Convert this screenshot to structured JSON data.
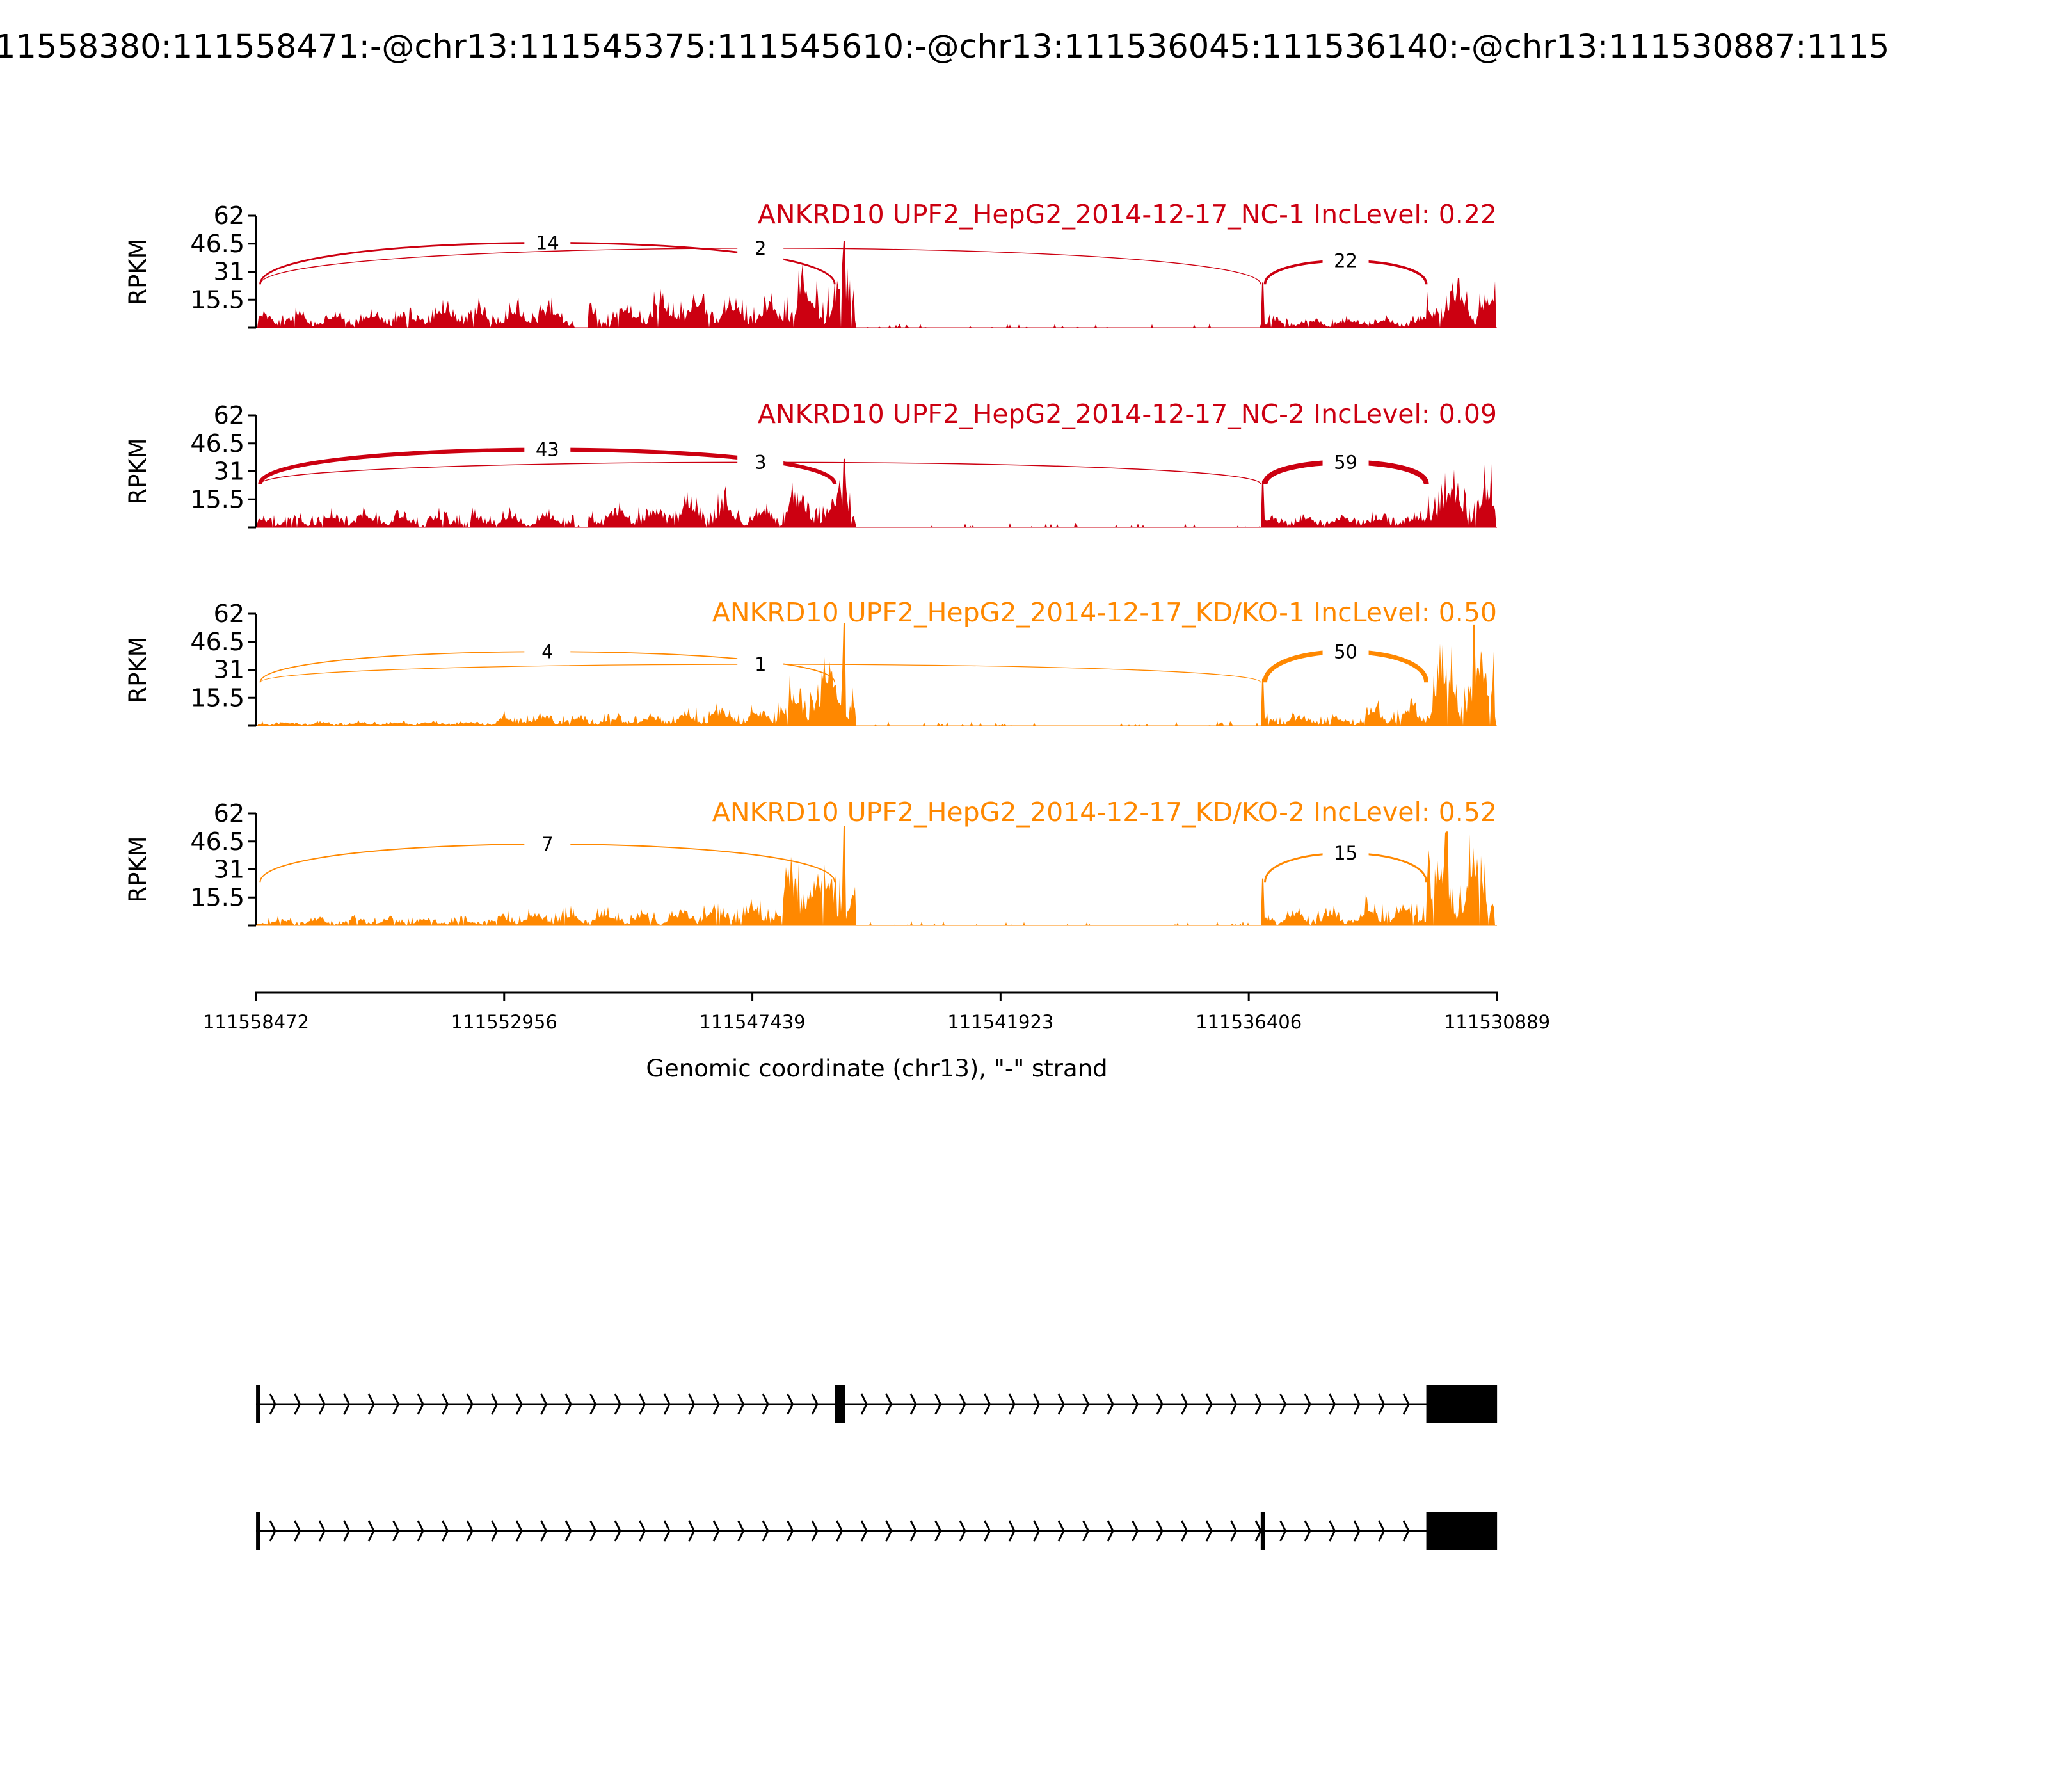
{
  "chart_data": {
    "type": "area",
    "title": "11558380:111558471:-@chr13:111545375:111545610:-@chr13:111536045:111536140:-@chr13:111530887:1115",
    "xlabel": "Genomic coordinate (chr13), \"-\" strand",
    "ylabel": "RPKM",
    "xlim": [
      111558472,
      111530889
    ],
    "x_ticks": [
      "111558472",
      "111552956",
      "111547439",
      "111541923",
      "111536406",
      "111530889"
    ],
    "ylim": [
      0,
      62
    ],
    "y_ticks": [
      "15.5",
      "31",
      "46.5",
      "62"
    ],
    "y_tick_values": [
      0,
      15.5,
      31,
      46.5,
      62
    ],
    "samples": [
      {
        "label": "ANKRD10 UPF2_HepG2_2014-12-17_NC-1 IncLevel: 0.22",
        "color": "#cc0011",
        "junctions": [
          {
            "from": 111558380,
            "to": 111545610,
            "count": "14",
            "height": 47
          },
          {
            "from": 111558380,
            "to": 111536140,
            "count": "2",
            "height": 44
          },
          {
            "from": 111536045,
            "to": 111532460,
            "count": "22",
            "height": 37
          }
        ],
        "coverage": [
          [
            111558443,
            111554582,
            8
          ],
          [
            111554582,
            111551389,
            11
          ],
          [
            111551098,
            111549647,
            13
          ],
          [
            111549647,
            111547905,
            17
          ],
          [
            111547905,
            111546744,
            13
          ],
          [
            111546744,
            111545583,
            24
          ],
          [
            111545583,
            111545147,
            28
          ],
          [
            111545147,
            111536118,
            0.6
          ],
          [
            111536118,
            111532460,
            5
          ],
          [
            111532460,
            111530911,
            21
          ]
        ],
        "peaks": [
          [
            111545400,
            48
          ],
          [
            111536100,
            25
          ]
        ]
      },
      {
        "label": "ANKRD10 UPF2_HepG2_2014-12-17_NC-2 IncLevel: 0.09",
        "color": "#cc0011",
        "junctions": [
          {
            "from": 111558380,
            "to": 111545610,
            "count": "43",
            "height": 43
          },
          {
            "from": 111558380,
            "to": 111536140,
            "count": "3",
            "height": 36
          },
          {
            "from": 111536045,
            "to": 111532460,
            "count": "59",
            "height": 36
          }
        ],
        "coverage": [
          [
            111558443,
            111551389,
            7
          ],
          [
            111551098,
            111549066,
            10
          ],
          [
            111549066,
            111547905,
            14
          ],
          [
            111547905,
            111546744,
            10
          ],
          [
            111546744,
            111545583,
            17
          ],
          [
            111545583,
            111545147,
            24
          ],
          [
            111545147,
            111536118,
            0.6
          ],
          [
            111536118,
            111532460,
            6
          ],
          [
            111532460,
            111530911,
            22
          ]
        ],
        "peaks": [
          [
            111545400,
            38
          ],
          [
            111536100,
            26
          ]
        ]
      },
      {
        "label": "ANKRD10 UPF2_HepG2_2014-12-17_KD/KO-1 IncLevel: 0.50",
        "color": "#ff8800",
        "junctions": [
          {
            "from": 111558380,
            "to": 111545610,
            "count": "4",
            "height": 41
          },
          {
            "from": 111558380,
            "to": 111536140,
            "count": "1",
            "height": 34
          },
          {
            "from": 111536045,
            "to": 111532460,
            "count": "50",
            "height": 41
          }
        ],
        "coverage": [
          [
            111558443,
            111553130,
            2
          ],
          [
            111553130,
            111549066,
            5
          ],
          [
            111549066,
            111547034,
            8
          ],
          [
            111547034,
            111546163,
            18
          ],
          [
            111546163,
            111545147,
            32
          ],
          [
            111545147,
            111536118,
            0.4
          ],
          [
            111536118,
            111533825,
            5
          ],
          [
            111533825,
            111532460,
            10
          ],
          [
            111532460,
            111530911,
            34
          ]
        ],
        "peaks": [
          [
            111545400,
            57
          ],
          [
            111531400,
            56
          ],
          [
            111536100,
            26
          ]
        ]
      },
      {
        "label": "ANKRD10 UPF2_HepG2_2014-12-17_KD/KO-2 IncLevel: 0.52",
        "color": "#ff8800",
        "junctions": [
          {
            "from": 111558380,
            "to": 111545610,
            "count": "7",
            "height": 45
          },
          {
            "from": 111536045,
            "to": 111532460,
            "count": "15",
            "height": 40
          }
        ],
        "coverage": [
          [
            111558443,
            111553130,
            4
          ],
          [
            111553130,
            111549066,
            7
          ],
          [
            111549066,
            111546744,
            11
          ],
          [
            111546744,
            111545147,
            30
          ],
          [
            111545147,
            111536118,
            0.4
          ],
          [
            111536118,
            111533825,
            7
          ],
          [
            111533825,
            111532460,
            11
          ],
          [
            111532460,
            111530911,
            36
          ]
        ],
        "peaks": [
          [
            111545400,
            55
          ],
          [
            111532000,
            52
          ],
          [
            111536100,
            26
          ]
        ]
      }
    ],
    "gene_tracks": [
      {
        "exons": [
          [
            111558380,
            111558471
          ],
          [
            111545375,
            111545610
          ],
          [
            111530887,
            111532460
          ]
        ]
      },
      {
        "exons": [
          [
            111558380,
            111558471
          ],
          [
            111536045,
            111536140
          ],
          [
            111530887,
            111532460
          ]
        ]
      }
    ]
  }
}
